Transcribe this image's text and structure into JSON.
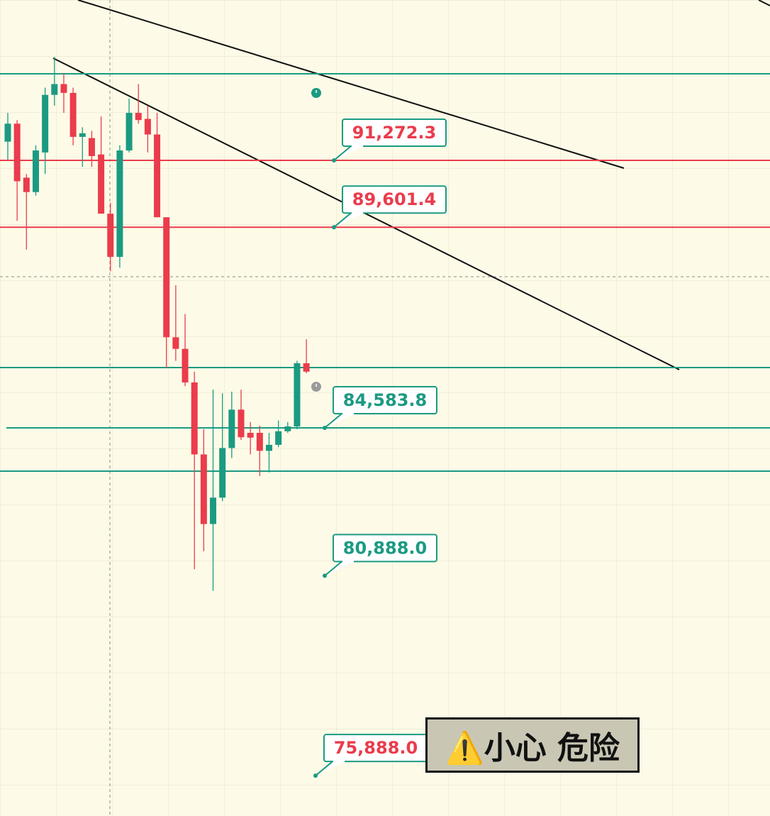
{
  "chart_data": {
    "type": "candlestick",
    "ylim": [
      74880,
      95282
    ],
    "up_color": "#1b9a82",
    "down_color": "#ea3c4c",
    "candles": {
      "open": [
        91740,
        92190,
        90840,
        90480,
        91470,
        92910,
        93180,
        92960,
        91860,
        91830,
        91420,
        89940,
        88860,
        91520,
        92460,
        92310,
        91920,
        89850,
        86850,
        86560,
        85720,
        83920,
        82180,
        82840,
        84080,
        85040,
        84460,
        84460,
        84010,
        84160,
        84500,
        84620,
        86200
      ],
      "high": [
        92460,
        92280,
        90930,
        91650,
        93090,
        93860,
        93450,
        93090,
        92100,
        92010,
        92370,
        90210,
        91650,
        92820,
        93180,
        92640,
        92460,
        89850,
        88150,
        87430,
        85990,
        84550,
        85540,
        85450,
        85490,
        85540,
        84730,
        84640,
        84460,
        84770,
        84730,
        86260,
        86800
      ],
      "low": [
        91290,
        89760,
        89040,
        90390,
        90930,
        92640,
        92460,
        91650,
        91110,
        91110,
        89940,
        88500,
        88590,
        91470,
        92190,
        91470,
        89850,
        86080,
        86260,
        85630,
        81050,
        81500,
        80510,
        82750,
        83830,
        84280,
        83920,
        83380,
        83470,
        84100,
        84460,
        84550,
        85950
      ],
      "close": [
        92190,
        90750,
        90480,
        91520,
        92910,
        93180,
        92960,
        91860,
        91950,
        91380,
        89940,
        88860,
        91520,
        92460,
        92280,
        91920,
        89850,
        86850,
        86560,
        85720,
        83920,
        82180,
        82840,
        84080,
        85040,
        84350,
        84340,
        84010,
        84160,
        84500,
        84620,
        86200,
        85990
      ]
    },
    "levels": [
      {
        "value": 93437,
        "color": "#1b9a82",
        "line": true
      },
      {
        "value": 91272.3,
        "label": "91,272.3",
        "color": "#ea3c4c",
        "line": true
      },
      {
        "value": 89601.4,
        "label": "89,601.4",
        "color": "#ea3c4c",
        "line": true
      },
      {
        "value": 86092,
        "color": "#1b9a82",
        "line": true
      },
      {
        "value": 84583.8,
        "label": "84,583.8",
        "color": "#1b9a82",
        "line": true
      },
      {
        "value": 83502,
        "color": "#1b9a82",
        "line": true
      },
      {
        "value": 80888.0,
        "label": "80,888.0",
        "color": "#1b9a82",
        "line": false
      },
      {
        "value": 75888.0,
        "label": "75,888.0",
        "color": "#ea3c4c",
        "line": false
      }
    ],
    "annotation": "⚠️小心 危险"
  }
}
